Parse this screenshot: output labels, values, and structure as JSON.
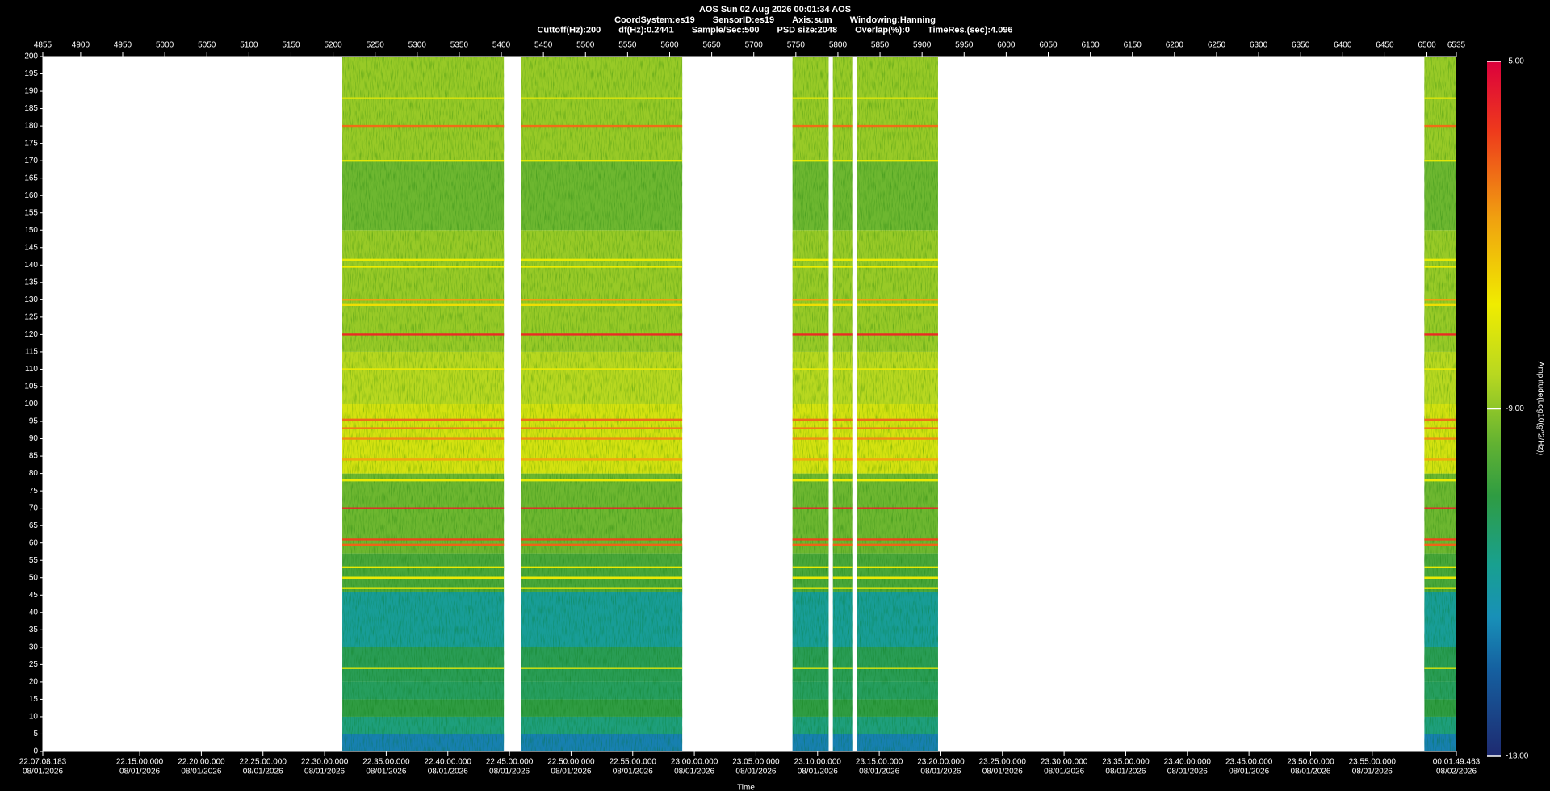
{
  "chart_data": {
    "type": "spectrogram",
    "title": "AOS  Sun 02 Aug 2026 00:01:34  AOS",
    "subtitles": [
      [
        "CoordSystem:es19",
        "SensorID:es19",
        "Axis:sum",
        "Windowing:Hanning"
      ],
      [
        "Cuttoff(Hz):200",
        "df(Hz):0.2441",
        "Sample/Sec:500",
        "PSD size:2048",
        "Overlap(%):0",
        "TimeRes.(sec):4.096"
      ]
    ],
    "xlabel": "Time",
    "xlim": [
      4855,
      6535
    ],
    "xticks": [
      4855,
      4900,
      4950,
      5000,
      5050,
      5100,
      5150,
      5200,
      5250,
      5300,
      5350,
      5400,
      5450,
      5500,
      5550,
      5600,
      5650,
      5700,
      5750,
      5800,
      5850,
      5900,
      5950,
      6000,
      6050,
      6100,
      6150,
      6200,
      6250,
      6300,
      6350,
      6400,
      6450,
      6500,
      6535
    ],
    "x2ticks": [
      {
        "value": 4855,
        "label": "22:07:08.183",
        "date": "08/01/2026"
      },
      {
        "value": 4970.19,
        "label": "22:15:00.000",
        "date": "08/01/2026"
      },
      {
        "value": 5043.43,
        "label": "22:20:00.000",
        "date": "08/01/2026"
      },
      {
        "value": 5116.67,
        "label": "22:25:00.000",
        "date": "08/01/2026"
      },
      {
        "value": 5189.92,
        "label": "22:30:00.000",
        "date": "08/01/2026"
      },
      {
        "value": 5263.16,
        "label": "22:35:00.000",
        "date": "08/01/2026"
      },
      {
        "value": 5336.4,
        "label": "22:40:00.000",
        "date": "08/01/2026"
      },
      {
        "value": 5409.64,
        "label": "22:45:00.000",
        "date": "08/01/2026"
      },
      {
        "value": 5482.89,
        "label": "22:50:00.000",
        "date": "08/01/2026"
      },
      {
        "value": 5556.13,
        "label": "22:55:00.000",
        "date": "08/01/2026"
      },
      {
        "value": 5629.37,
        "label": "23:00:00.000",
        "date": "08/01/2026"
      },
      {
        "value": 5702.61,
        "label": "23:05:00.000",
        "date": "08/01/2026"
      },
      {
        "value": 5775.85,
        "label": "23:10:00.000",
        "date": "08/01/2026"
      },
      {
        "value": 5849.1,
        "label": "23:15:00.000",
        "date": "08/01/2026"
      },
      {
        "value": 5922.34,
        "label": "23:20:00.000",
        "date": "08/01/2026"
      },
      {
        "value": 5995.58,
        "label": "23:25:00.000",
        "date": "08/01/2026"
      },
      {
        "value": 6068.82,
        "label": "23:30:00.000",
        "date": "08/01/2026"
      },
      {
        "value": 6142.06,
        "label": "23:35:00.000",
        "date": "08/01/2026"
      },
      {
        "value": 6215.31,
        "label": "23:40:00.000",
        "date": "08/01/2026"
      },
      {
        "value": 6288.55,
        "label": "23:45:00.000",
        "date": "08/01/2026"
      },
      {
        "value": 6361.79,
        "label": "23:50:00.000",
        "date": "08/01/2026"
      },
      {
        "value": 6435.03,
        "label": "23:55:00.000",
        "date": "08/01/2026"
      },
      {
        "value": 6535,
        "label": "00:01:49.463",
        "date": "08/02/2026"
      }
    ],
    "ylim": [
      0,
      200
    ],
    "yticks": [
      0,
      5,
      10,
      15,
      20,
      25,
      30,
      35,
      40,
      45,
      50,
      55,
      60,
      65,
      70,
      75,
      80,
      85,
      90,
      95,
      100,
      105,
      110,
      115,
      120,
      125,
      130,
      135,
      140,
      145,
      150,
      155,
      160,
      165,
      170,
      175,
      180,
      185,
      190,
      195,
      200
    ],
    "segments": [
      [
        5211,
        5403
      ],
      [
        5423,
        5615
      ],
      [
        5746,
        5789
      ],
      [
        5794,
        5818
      ],
      [
        5823,
        5919
      ],
      [
        6497,
        6535
      ]
    ],
    "bands": {
      "edges": [
        0,
        5,
        10,
        15,
        20,
        30,
        46,
        57,
        80,
        100,
        115,
        150,
        170,
        200
      ],
      "amplitude": [
        -11.6,
        -10.6,
        -10.0,
        -10.3,
        -10.2,
        -10.9,
        -9.7,
        -9.3,
        -8.2,
        -8.6,
        -8.9,
        -9.3,
        -8.9
      ]
    },
    "lines": [
      {
        "hz": 188,
        "amplitude": -8.1
      },
      {
        "hz": 180,
        "amplitude": -6.3
      },
      {
        "hz": 170,
        "amplitude": -8.0
      },
      {
        "hz": 141.5,
        "amplitude": -7.9
      },
      {
        "hz": 139.5,
        "amplitude": -7.8
      },
      {
        "hz": 130,
        "amplitude": -6.8
      },
      {
        "hz": 128.5,
        "amplitude": -7.6
      },
      {
        "hz": 120,
        "amplitude": -5.6
      },
      {
        "hz": 110,
        "amplitude": -8.0
      },
      {
        "hz": 95.5,
        "amplitude": -6.3
      },
      {
        "hz": 93,
        "amplitude": -6.5
      },
      {
        "hz": 90,
        "amplitude": -6.6
      },
      {
        "hz": 84,
        "amplitude": -6.9
      },
      {
        "hz": 78,
        "amplitude": -7.9
      },
      {
        "hz": 70,
        "amplitude": -5.5
      },
      {
        "hz": 61,
        "amplitude": -5.9
      },
      {
        "hz": 59.5,
        "amplitude": -6.2
      },
      {
        "hz": 53,
        "amplitude": -7.9
      },
      {
        "hz": 50,
        "amplitude": -7.9
      },
      {
        "hz": 47,
        "amplitude": -8.0
      },
      {
        "hz": 24,
        "amplitude": -8.1
      }
    ],
    "colorbar": {
      "label": "Amplitude(Log10(g^2/Hz))",
      "lim": [
        -13,
        -5
      ],
      "ticks": [
        {
          "value": -13,
          "label": "-13.00"
        },
        {
          "value": -9,
          "label": "-9.00"
        },
        {
          "value": -5,
          "label": "-5.00"
        }
      ],
      "colormap": [
        {
          "value": -13,
          "color": "#1e2a70"
        },
        {
          "value": -12,
          "color": "#1560a0"
        },
        {
          "value": -11.4,
          "color": "#1890b8"
        },
        {
          "value": -10.8,
          "color": "#18a090"
        },
        {
          "value": -10,
          "color": "#2f9c42"
        },
        {
          "value": -9.4,
          "color": "#62b232"
        },
        {
          "value": -8.6,
          "color": "#b8d820"
        },
        {
          "value": -7.8,
          "color": "#f0ec00"
        },
        {
          "value": -6.8,
          "color": "#f0a010"
        },
        {
          "value": -5.8,
          "color": "#ee3a1c"
        },
        {
          "value": -5,
          "color": "#dc003c"
        }
      ]
    }
  }
}
